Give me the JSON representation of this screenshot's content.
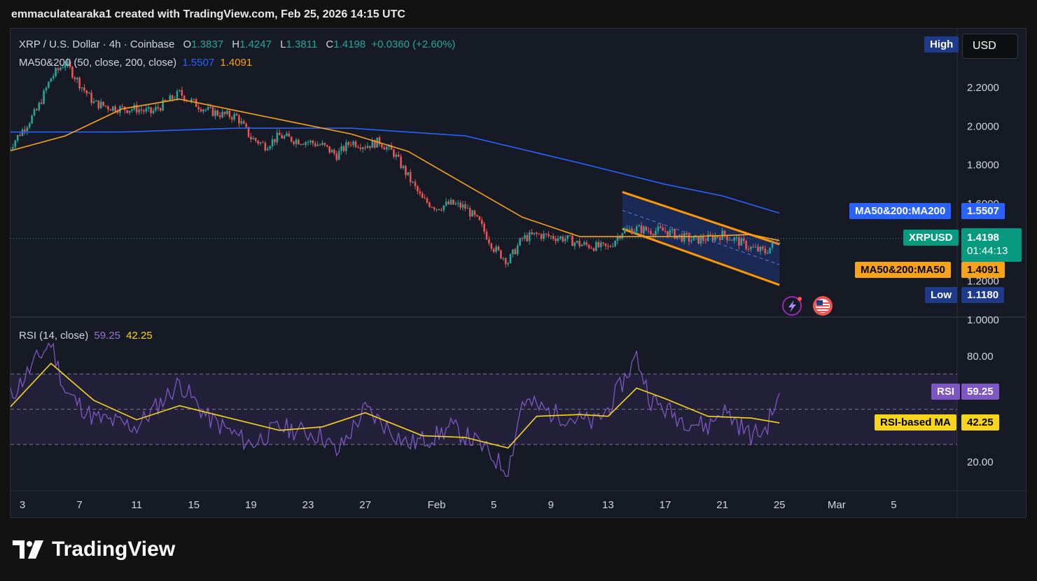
{
  "caption": "emmaculatearaka1 created with TradingView.com, Feb 25, 2026 14:15 UTC",
  "brand": {
    "name": "TradingView",
    "logo_icon": "tradingview-logo-icon"
  },
  "legend": {
    "symbol": "XRP / U.S. Dollar · 4h · Coinbase",
    "open_label": "O",
    "open": "1.3837",
    "high_label": "H",
    "high": "1.4247",
    "low_label": "L",
    "low": "1.3811",
    "close_label": "C",
    "close": "1.4198",
    "change": "+0.0360 (+2.60%)",
    "ma_title": "MA50&200 (50, close, 200, close)",
    "ma200_value": "1.5507",
    "ma50_value": "1.4091",
    "rsi_title": "RSI (14, close)",
    "rsi_value": "59.25",
    "rsi_ma_value": "42.25"
  },
  "toolbar": {
    "high_button": "High",
    "currency": "USD"
  },
  "price_tags": {
    "ma200_label": "MA50&200:MA200",
    "ma200_value": "1.5507",
    "symbol_label": "XRPUSD",
    "symbol_value": "1.4198",
    "countdown": "01:44:13",
    "ma50_label": "MA50&200:MA50",
    "ma50_value": "1.4091",
    "low_label": "Low",
    "low_value": "1.1180",
    "rsi_label": "RSI",
    "rsi_value": "59.25",
    "rsi_ma_label": "RSI-based MA",
    "rsi_ma_value": "42.25"
  },
  "colors": {
    "up": "#26a69a",
    "down": "#ef5350",
    "ma200": "#2962ff",
    "ma50": "#f7a21b",
    "channel": "#ff9800",
    "rsi": "#7e57c2",
    "rsi_ma": "#f7d51d",
    "background": "#161a25"
  },
  "icons": [
    "lightning-event-icon",
    "us-flag-icon"
  ],
  "chart_data": [
    {
      "type": "candlestick",
      "title": "XRP / U.S. Dollar · 4h · Coinbase",
      "x_axis_ticks": [
        "3",
        "7",
        "11",
        "15",
        "19",
        "23",
        "27",
        "Feb",
        "5",
        "9",
        "13",
        "17",
        "21",
        "25",
        "Mar",
        "5"
      ],
      "y_axis_ticks": [
        "2.2000",
        "2.0000",
        "1.8000",
        "1.6000",
        "1.2000",
        "1.0000"
      ],
      "ylim": [
        1.0,
        2.4
      ],
      "close_path": [
        {
          "date": "2026-01-02",
          "close": 1.88
        },
        {
          "date": "2026-01-03",
          "close": 1.98
        },
        {
          "date": "2026-01-04",
          "close": 2.08
        },
        {
          "date": "2026-01-05",
          "close": 2.25
        },
        {
          "date": "2026-01-06",
          "close": 2.33
        },
        {
          "date": "2026-01-07",
          "close": 2.22
        },
        {
          "date": "2026-01-08",
          "close": 2.12
        },
        {
          "date": "2026-01-09",
          "close": 2.1
        },
        {
          "date": "2026-01-10",
          "close": 2.09
        },
        {
          "date": "2026-01-11",
          "close": 2.09
        },
        {
          "date": "2026-01-12",
          "close": 2.07
        },
        {
          "date": "2026-01-13",
          "close": 2.12
        },
        {
          "date": "2026-01-14",
          "close": 2.17
        },
        {
          "date": "2026-01-15",
          "close": 2.12
        },
        {
          "date": "2026-01-16",
          "close": 2.08
        },
        {
          "date": "2026-01-17",
          "close": 2.06
        },
        {
          "date": "2026-01-18",
          "close": 2.05
        },
        {
          "date": "2026-01-19",
          "close": 1.94
        },
        {
          "date": "2026-01-20",
          "close": 1.9
        },
        {
          "date": "2026-01-21",
          "close": 1.95
        },
        {
          "date": "2026-01-22",
          "close": 1.93
        },
        {
          "date": "2026-01-23",
          "close": 1.92
        },
        {
          "date": "2026-01-24",
          "close": 1.9
        },
        {
          "date": "2026-01-25",
          "close": 1.85
        },
        {
          "date": "2026-01-26",
          "close": 1.92
        },
        {
          "date": "2026-01-27",
          "close": 1.9
        },
        {
          "date": "2026-01-28",
          "close": 1.92
        },
        {
          "date": "2026-01-29",
          "close": 1.86
        },
        {
          "date": "2026-01-30",
          "close": 1.74
        },
        {
          "date": "2026-01-31",
          "close": 1.62
        },
        {
          "date": "2026-02-01",
          "close": 1.58
        },
        {
          "date": "2026-02-02",
          "close": 1.6
        },
        {
          "date": "2026-02-03",
          "close": 1.58
        },
        {
          "date": "2026-02-04",
          "close": 1.5
        },
        {
          "date": "2026-02-05",
          "close": 1.37
        },
        {
          "date": "2026-02-06",
          "close": 1.3
        },
        {
          "date": "2026-02-07",
          "close": 1.42
        },
        {
          "date": "2026-02-08",
          "close": 1.44
        },
        {
          "date": "2026-02-09",
          "close": 1.43
        },
        {
          "date": "2026-02-10",
          "close": 1.42
        },
        {
          "date": "2026-02-11",
          "close": 1.39
        },
        {
          "date": "2026-02-12",
          "close": 1.38
        },
        {
          "date": "2026-02-13",
          "close": 1.37
        },
        {
          "date": "2026-02-14",
          "close": 1.46
        },
        {
          "date": "2026-02-15",
          "close": 1.47
        },
        {
          "date": "2026-02-16",
          "close": 1.46
        },
        {
          "date": "2026-02-17",
          "close": 1.46
        },
        {
          "date": "2026-02-18",
          "close": 1.43
        },
        {
          "date": "2026-02-19",
          "close": 1.41
        },
        {
          "date": "2026-02-20",
          "close": 1.42
        },
        {
          "date": "2026-02-21",
          "close": 1.44
        },
        {
          "date": "2026-02-22",
          "close": 1.41
        },
        {
          "date": "2026-02-23",
          "close": 1.37
        },
        {
          "date": "2026-02-24",
          "close": 1.35
        },
        {
          "date": "2026-02-25",
          "close": 1.4198
        }
      ],
      "ma50": [
        {
          "date": "2026-01-02",
          "value": 1.87
        },
        {
          "date": "2026-01-06",
          "value": 1.95
        },
        {
          "date": "2026-01-10",
          "value": 2.09
        },
        {
          "date": "2026-01-14",
          "value": 2.14
        },
        {
          "date": "2026-01-18",
          "value": 2.08
        },
        {
          "date": "2026-01-22",
          "value": 2.02
        },
        {
          "date": "2026-01-26",
          "value": 1.96
        },
        {
          "date": "2026-01-30",
          "value": 1.87
        },
        {
          "date": "2026-02-03",
          "value": 1.7
        },
        {
          "date": "2026-02-07",
          "value": 1.53
        },
        {
          "date": "2026-02-11",
          "value": 1.43
        },
        {
          "date": "2026-02-15",
          "value": 1.43
        },
        {
          "date": "2026-02-19",
          "value": 1.43
        },
        {
          "date": "2026-02-23",
          "value": 1.44
        },
        {
          "date": "2026-02-25",
          "value": 1.4091
        }
      ],
      "ma200": [
        {
          "date": "2026-01-02",
          "value": 1.97
        },
        {
          "date": "2026-01-10",
          "value": 1.97
        },
        {
          "date": "2026-01-18",
          "value": 1.99
        },
        {
          "date": "2026-01-26",
          "value": 1.99
        },
        {
          "date": "2026-02-03",
          "value": 1.95
        },
        {
          "date": "2026-02-11",
          "value": 1.81
        },
        {
          "date": "2026-02-17",
          "value": 1.7
        },
        {
          "date": "2026-02-21",
          "value": 1.64
        },
        {
          "date": "2026-02-25",
          "value": 1.5507
        }
      ],
      "channel": {
        "upper": [
          {
            "date": "2026-02-14",
            "value": 1.66
          },
          {
            "date": "2026-02-25",
            "value": 1.39
          }
        ],
        "lower": [
          {
            "date": "2026-02-14",
            "value": 1.47
          },
          {
            "date": "2026-02-25",
            "value": 1.18
          }
        ]
      },
      "last_price": 1.4198
    },
    {
      "type": "line",
      "title": "RSI (14, close)",
      "y_axis_ticks": [
        "80.00",
        "20.00"
      ],
      "ylim": [
        10,
        95
      ],
      "bands": [
        70,
        50,
        30
      ],
      "rsi": [
        {
          "date": "2026-01-02",
          "value": 55
        },
        {
          "date": "2026-01-04",
          "value": 78
        },
        {
          "date": "2026-01-05",
          "value": 88
        },
        {
          "date": "2026-01-06",
          "value": 60
        },
        {
          "date": "2026-01-08",
          "value": 45
        },
        {
          "date": "2026-01-11",
          "value": 40
        },
        {
          "date": "2026-01-14",
          "value": 65
        },
        {
          "date": "2026-01-16",
          "value": 45
        },
        {
          "date": "2026-01-19",
          "value": 30
        },
        {
          "date": "2026-01-21",
          "value": 40
        },
        {
          "date": "2026-01-24",
          "value": 35
        },
        {
          "date": "2026-01-25",
          "value": 25
        },
        {
          "date": "2026-01-27",
          "value": 50
        },
        {
          "date": "2026-01-30",
          "value": 30
        },
        {
          "date": "2026-02-01",
          "value": 35
        },
        {
          "date": "2026-02-02",
          "value": 40
        },
        {
          "date": "2026-02-04",
          "value": 30
        },
        {
          "date": "2026-02-06",
          "value": 15
        },
        {
          "date": "2026-02-07",
          "value": 55
        },
        {
          "date": "2026-02-09",
          "value": 48
        },
        {
          "date": "2026-02-12",
          "value": 42
        },
        {
          "date": "2026-02-13",
          "value": 50
        },
        {
          "date": "2026-02-14",
          "value": 65
        },
        {
          "date": "2026-02-15",
          "value": 80
        },
        {
          "date": "2026-02-16",
          "value": 55
        },
        {
          "date": "2026-02-18",
          "value": 45
        },
        {
          "date": "2026-02-20",
          "value": 40
        },
        {
          "date": "2026-02-21",
          "value": 50
        },
        {
          "date": "2026-02-23",
          "value": 35
        },
        {
          "date": "2026-02-24",
          "value": 38
        },
        {
          "date": "2026-02-25",
          "value": 59.25
        }
      ],
      "rsi_ma": [
        {
          "date": "2026-01-02",
          "value": 50
        },
        {
          "date": "2026-01-05",
          "value": 76
        },
        {
          "date": "2026-01-08",
          "value": 55
        },
        {
          "date": "2026-01-11",
          "value": 44
        },
        {
          "date": "2026-01-14",
          "value": 52
        },
        {
          "date": "2026-01-17",
          "value": 46
        },
        {
          "date": "2026-01-21",
          "value": 38
        },
        {
          "date": "2026-01-24",
          "value": 40
        },
        {
          "date": "2026-01-27",
          "value": 48
        },
        {
          "date": "2026-01-31",
          "value": 35
        },
        {
          "date": "2026-02-03",
          "value": 34
        },
        {
          "date": "2026-02-06",
          "value": 28
        },
        {
          "date": "2026-02-08",
          "value": 46
        },
        {
          "date": "2026-02-11",
          "value": 47
        },
        {
          "date": "2026-02-13",
          "value": 46
        },
        {
          "date": "2026-02-15",
          "value": 62
        },
        {
          "date": "2026-02-17",
          "value": 56
        },
        {
          "date": "2026-02-20",
          "value": 46
        },
        {
          "date": "2026-02-23",
          "value": 45
        },
        {
          "date": "2026-02-25",
          "value": 42.25
        }
      ]
    }
  ]
}
